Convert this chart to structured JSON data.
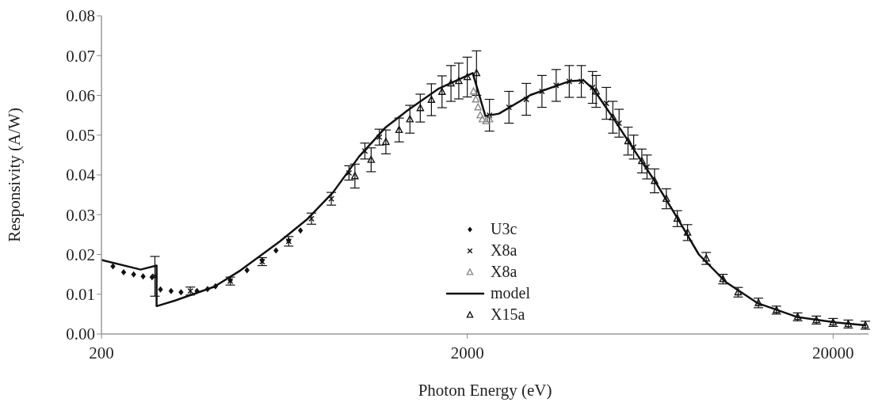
{
  "chart_data": {
    "type": "scatter",
    "xlabel": "Photon Energy (eV)",
    "ylabel": "Responsivity (A/W)",
    "log": "x",
    "xlim": [
      200,
      25000
    ],
    "xticks": [
      200,
      2000,
      20000
    ],
    "ylim": [
      0,
      0.08
    ],
    "yticks": [
      {
        "value": 0,
        "label": "0.00"
      },
      {
        "value": 0.01,
        "label": "0.01"
      },
      {
        "value": 0.02,
        "label": "0.02"
      },
      {
        "value": 0.03,
        "label": "0.03"
      },
      {
        "value": 0.04,
        "label": "0.04"
      },
      {
        "value": 0.05,
        "label": "0.05"
      },
      {
        "value": 0.06,
        "label": "0.06"
      },
      {
        "value": 0.07,
        "label": "0.07"
      },
      {
        "value": 0.08,
        "label": "0.08"
      }
    ],
    "grid": false,
    "legend": "bottom",
    "series": [
      {
        "name": "U3c",
        "marker": "diamond",
        "color": "#111111",
        "x": [
          215,
          230,
          245,
          260,
          275,
          290,
          310,
          330,
          365,
          390,
          410,
          450,
          500,
          550,
          600,
          650,
          700
        ],
        "values": [
          0.017,
          0.0155,
          0.015,
          0.0145,
          0.0143,
          0.0112,
          0.0108,
          0.0105,
          0.0108,
          0.0113,
          0.012,
          0.0135,
          0.016,
          0.0185,
          0.021,
          0.0235,
          0.026
        ]
      },
      {
        "name": "X8a",
        "marker": "cross",
        "color": "#111111",
        "x": [
          280,
          350,
          450,
          550,
          650,
          750,
          850,
          950,
          1050,
          1150,
          2300,
          2600,
          2900,
          3200,
          3500,
          3800,
          4100,
          4400,
          4800,
          5200,
          5700,
          6200
        ],
        "values": [
          0.0145,
          0.0108,
          0.0133,
          0.0182,
          0.0233,
          0.029,
          0.034,
          0.0405,
          0.046,
          0.0495,
          0.055,
          0.057,
          0.059,
          0.061,
          0.0625,
          0.0635,
          0.0635,
          0.062,
          0.058,
          0.053,
          0.047,
          0.042
        ],
        "errors": [
          0.005,
          0.001,
          0.001,
          0.001,
          0.0012,
          0.0014,
          0.0016,
          0.0018,
          0.002,
          0.002,
          0.004,
          0.004,
          0.004,
          0.004,
          0.004,
          0.004,
          0.004,
          0.004,
          0.004,
          0.0035,
          0.003,
          0.003
        ]
      },
      {
        "name": "X8a",
        "marker": "triangle",
        "color": "#888888",
        "x": [
          2080,
          2110,
          2140,
          2170,
          2200,
          2250,
          2300
        ],
        "values": [
          0.061,
          0.059,
          0.057,
          0.055,
          0.054,
          0.0535,
          0.054
        ]
      },
      {
        "name": "model",
        "type": "line",
        "line_style": "solid",
        "marker": "none",
        "color": "#111111",
        "x": [
          200,
          256,
          283,
          283,
          318,
          407,
          480,
          615,
          729,
          859,
          1012,
          1198,
          1364,
          1664,
          2070,
          2242,
          2441,
          2978,
          3818,
          4155,
          4432,
          4970,
          5684,
          6600,
          7546,
          8588,
          10170,
          12408,
          15910,
          20400,
          24500
        ],
        "values": [
          0.0186,
          0.0162,
          0.0172,
          0.007,
          0.0084,
          0.0119,
          0.016,
          0.0233,
          0.0288,
          0.0356,
          0.0446,
          0.052,
          0.056,
          0.0616,
          0.0656,
          0.0548,
          0.0554,
          0.0601,
          0.0636,
          0.0638,
          0.0615,
          0.0548,
          0.0466,
          0.0376,
          0.0288,
          0.02,
          0.0131,
          0.0078,
          0.0043,
          0.0029,
          0.0022
        ]
      },
      {
        "name": "X15a",
        "marker": "triangle",
        "color": "#111111",
        "x": [
          986,
          1092,
          1198,
          1302,
          1394,
          1488,
          1596,
          1706,
          1805,
          1896,
          2000,
          2120,
          4500,
          5000,
          5500,
          6000,
          6500,
          7000,
          7500,
          8000,
          9000,
          10000,
          11000,
          12500,
          14000,
          16000,
          18000,
          20000,
          22000,
          24500
        ],
        "values": [
          0.0397,
          0.0438,
          0.0483,
          0.0513,
          0.054,
          0.0568,
          0.0589,
          0.0609,
          0.063,
          0.0636,
          0.0646,
          0.0656,
          0.061,
          0.0545,
          0.0485,
          0.0435,
          0.0385,
          0.034,
          0.029,
          0.0255,
          0.019,
          0.0138,
          0.0105,
          0.0078,
          0.006,
          0.0043,
          0.0035,
          0.0029,
          0.0025,
          0.0022
        ],
        "errors": [
          0.003,
          0.003,
          0.003,
          0.003,
          0.0035,
          0.0035,
          0.004,
          0.004,
          0.0045,
          0.0045,
          0.005,
          0.0056,
          0.004,
          0.004,
          0.0035,
          0.003,
          0.003,
          0.0025,
          0.002,
          0.002,
          0.0015,
          0.0012,
          0.0012,
          0.0012,
          0.001,
          0.001,
          0.001,
          0.001,
          0.001,
          0.001
        ]
      }
    ]
  }
}
